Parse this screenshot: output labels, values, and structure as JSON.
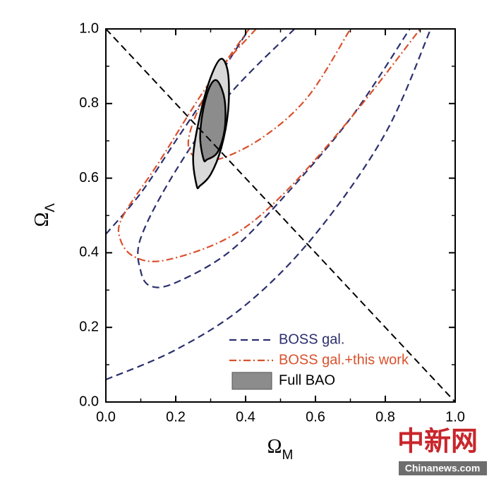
{
  "chart_data": {
    "type": "contour",
    "x_label": {
      "symbol": "Ω",
      "subscript": "M"
    },
    "y_label": {
      "symbol": "Ω",
      "subscript": "Λ"
    },
    "xlim": [
      0,
      1
    ],
    "ylim": [
      0,
      1
    ],
    "xticks": [
      {
        "value": 0,
        "label": "0.0"
      },
      {
        "value": 0.2,
        "label": "0.2"
      },
      {
        "value": 0.4,
        "label": "0.4"
      },
      {
        "value": 0.6,
        "label": "0.6"
      },
      {
        "value": 0.8,
        "label": "0.8"
      },
      {
        "value": 1,
        "label": "1.0"
      }
    ],
    "yticks": [
      {
        "value": 0,
        "label": "0.0"
      },
      {
        "value": 0.2,
        "label": "0.2"
      },
      {
        "value": 0.4,
        "label": "0.4"
      },
      {
        "value": 0.6,
        "label": "0.6"
      },
      {
        "value": 0.8,
        "label": "0.8"
      },
      {
        "value": 1,
        "label": "1.0"
      }
    ],
    "flat_line": {
      "x": [
        0,
        1
      ],
      "y": [
        1,
        0
      ],
      "color": "#000000"
    },
    "legend": "lower right",
    "series": [
      {
        "name": "BOSS gal.",
        "color": "#2b2f6e",
        "style": "dashed",
        "curves": [
          {
            "x": [
              0,
              0.1,
              0.2,
              0.3,
              0.41
            ],
            "y": [
              0.45,
              0.56,
              0.7,
              0.84,
              1.0
            ]
          },
          {
            "x": [
              0,
              0.2,
              0.4,
              0.6,
              0.8,
              0.93
            ],
            "y": [
              0.06,
              0.14,
              0.26,
              0.45,
              0.72,
              1.0
            ]
          },
          {
            "x": [
              0.54,
              0.35,
              0.2,
              0.1,
              0.1,
              0.13,
              0.2,
              0.35,
              0.5,
              0.7,
              0.87
            ],
            "y": [
              1.0,
              0.82,
              0.62,
              0.44,
              0.35,
              0.31,
              0.32,
              0.4,
              0.54,
              0.76,
              1.0
            ]
          }
        ]
      },
      {
        "name": "BOSS gal.+this work",
        "color": "#d9512c",
        "style": "dashdot",
        "curves": [
          {
            "x": [
              0.43,
              0.3,
              0.15,
              0.05,
              0.04,
              0.08,
              0.17,
              0.35,
              0.5,
              0.7,
              0.9
            ],
            "y": [
              1.0,
              0.86,
              0.64,
              0.5,
              0.44,
              0.39,
              0.38,
              0.44,
              0.55,
              0.76,
              1.0
            ]
          },
          {
            "x": [
              0.41,
              0.3,
              0.24,
              0.25,
              0.32,
              0.45,
              0.58,
              0.7
            ],
            "y": [
              1.0,
              0.85,
              0.72,
              0.66,
              0.65,
              0.71,
              0.82,
              1.0
            ]
          }
        ]
      },
      {
        "name": "Full BAO",
        "color": "#8c8c8c",
        "style": "filled",
        "curves": [
          {
            "x": [
              0.26,
              0.25,
              0.27,
              0.3,
              0.33,
              0.35,
              0.35,
              0.33,
              0.3,
              0.27
            ],
            "y": [
              0.58,
              0.66,
              0.77,
              0.87,
              0.92,
              0.88,
              0.78,
              0.68,
              0.61,
              0.58
            ],
            "fill": "#d9d9d9"
          },
          {
            "x": [
              0.28,
              0.27,
              0.28,
              0.3,
              0.32,
              0.34,
              0.34,
              0.32,
              0.29
            ],
            "y": [
              0.65,
              0.71,
              0.79,
              0.85,
              0.86,
              0.81,
              0.73,
              0.67,
              0.65
            ],
            "fill": "#8c8c8c"
          }
        ]
      }
    ],
    "watermark": [
      "中新网",
      "Chinanews.com"
    ]
  }
}
